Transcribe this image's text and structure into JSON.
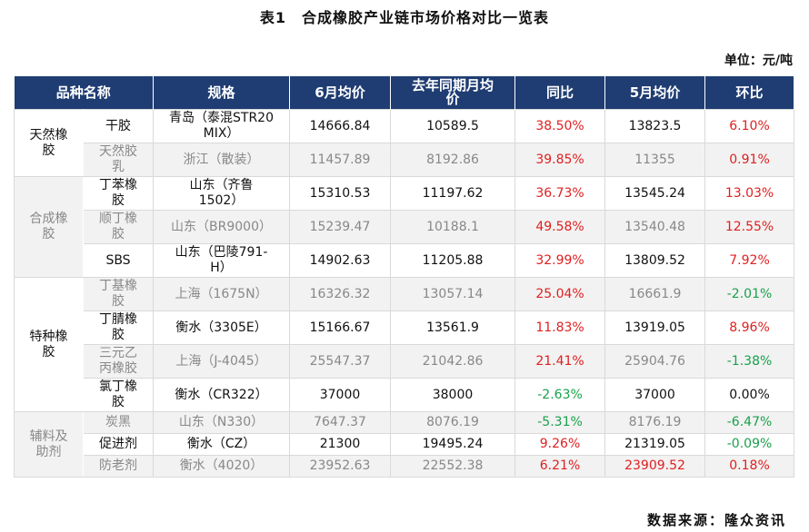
{
  "title": "表1　合成橡胶产业链市场价格对比一览表",
  "unit": "单位：元/吨",
  "headers": [
    "品种名称",
    "规格",
    "6月均价",
    "去年同期月均价",
    "同比",
    "5月均价",
    "环比"
  ],
  "categories": [
    "天然橡胶",
    "合成橡胶",
    "特种橡胶",
    "辅料及助剂"
  ],
  "rows": [
    {
      "product": "干胶",
      "spec": "青岛（泰混STR20 MIX）",
      "june": "14666.84",
      "last_year": "10589.5",
      "yoy": "38.50%",
      "may": "13823.5",
      "mom": "6.10%"
    },
    {
      "product": "天然胶乳",
      "spec": "浙江（散装）",
      "june": "11457.89",
      "last_year": "8192.86",
      "yoy": "39.85%",
      "may": "11355",
      "mom": "0.91%"
    },
    {
      "product": "丁苯橡胶",
      "spec": "山东（齐鲁1502）",
      "june": "15310.53",
      "last_year": "11197.62",
      "yoy": "36.73%",
      "may": "13545.24",
      "mom": "13.03%"
    },
    {
      "product": "顺丁橡胶",
      "spec": "山东（BR9000）",
      "june": "15239.47",
      "last_year": "10188.1",
      "yoy": "49.58%",
      "may": "13540.48",
      "mom": "12.55%"
    },
    {
      "product": "SBS",
      "spec": "山东（巴陵791-H）",
      "june": "14902.63",
      "last_year": "11205.88",
      "yoy": "32.99%",
      "may": "13809.52",
      "mom": "7.92%"
    },
    {
      "product": "丁基橡胶",
      "spec": "上海（1675N）",
      "june": "16326.32",
      "last_year": "13057.14",
      "yoy": "25.04%",
      "may": "16661.9",
      "mom": "-2.01%"
    },
    {
      "product": "丁腈橡胶",
      "spec": "衡水（3305E）",
      "june": "15166.67",
      "last_year": "13561.9",
      "yoy": "11.83%",
      "may": "13919.05",
      "mom": "8.96%"
    },
    {
      "product": "三元乙丙橡胶",
      "spec": "上海（J-4045）",
      "june": "25547.37",
      "last_year": "21042.86",
      "yoy": "21.41%",
      "may": "25904.76",
      "mom": "-1.38%"
    },
    {
      "product": "氯丁橡胶",
      "spec": "衡水（CR322）",
      "june": "37000",
      "last_year": "38000",
      "yoy": "-2.63%",
      "may": "37000",
      "mom": "0.00%"
    },
    {
      "product": "炭黑",
      "spec": "山东（N330）",
      "june": "7647.37",
      "last_year": "8076.19",
      "yoy": "-5.31%",
      "may": "8176.19",
      "mom": "-6.47%"
    },
    {
      "product": "促进剂",
      "spec": "衡水（CZ）",
      "june": "21300",
      "last_year": "19495.24",
      "yoy": "9.26%",
      "may": "21319.05",
      "mom": "-0.09%"
    },
    {
      "product": "防老剂",
      "spec": "衡水（4020）",
      "june": "23952.63",
      "last_year": "22552.38",
      "yoy": "6.21%",
      "may": "23909.52",
      "mom": "0.18%"
    }
  ],
  "source": "数据来源：隆众资讯",
  "colors": {
    "header_bg": "#1f3d73",
    "up": "#e02020",
    "down": "#18a14b",
    "shade": "#f2f2f2"
  }
}
